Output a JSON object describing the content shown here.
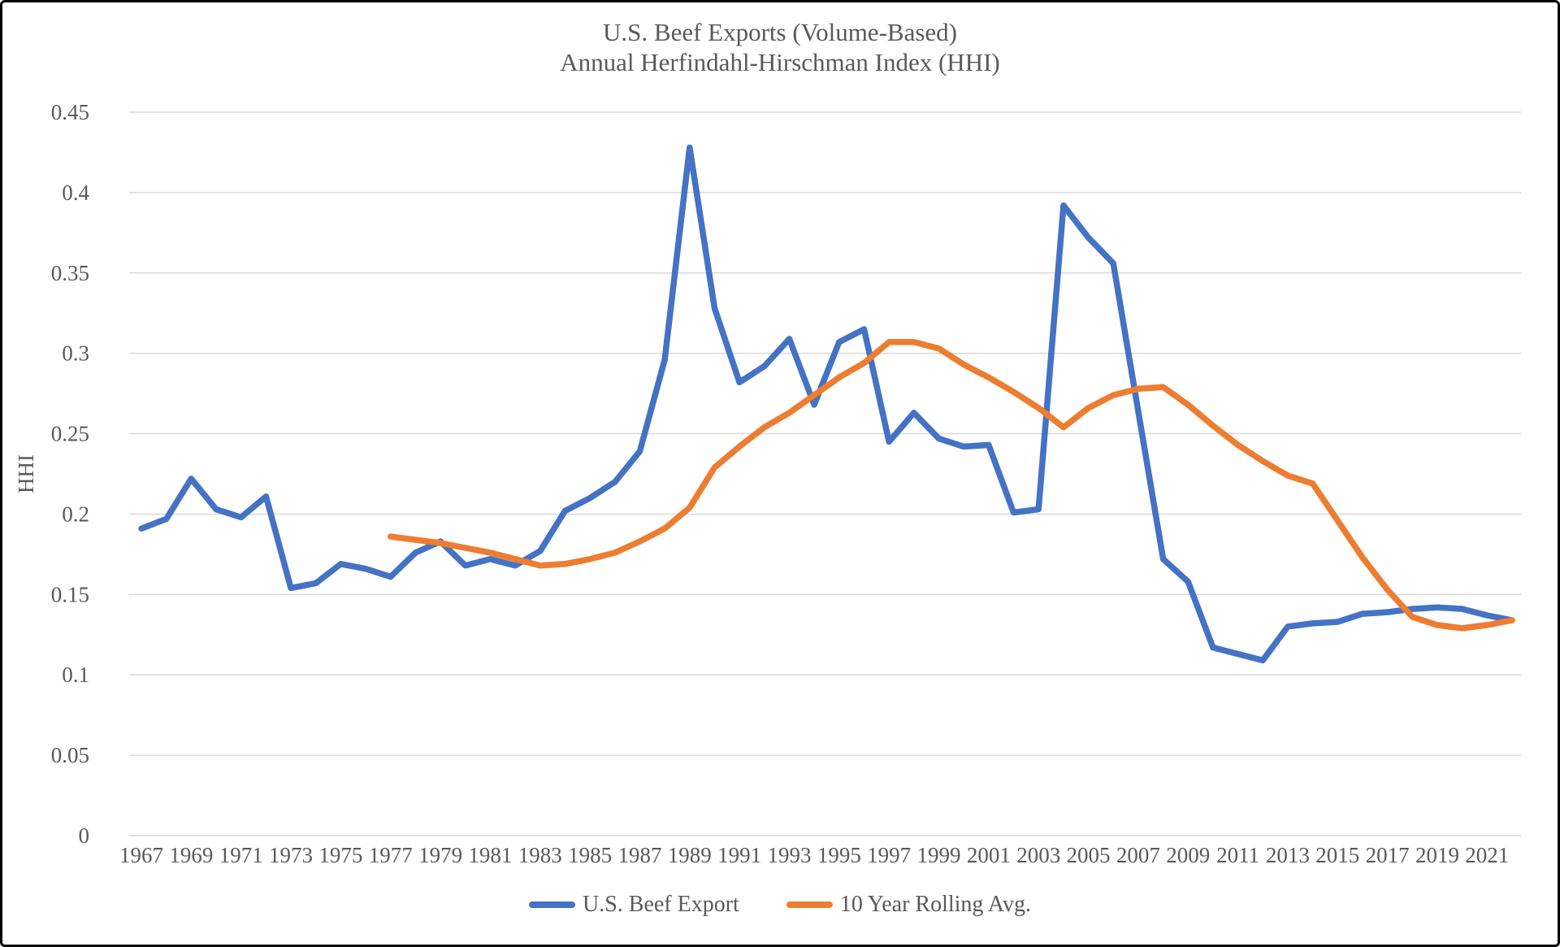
{
  "styles": {
    "text_color": "#595959",
    "gridline_color": "#D9D9D9",
    "background": "#FFFFFF",
    "border_color": "#000000"
  },
  "chart_data": {
    "type": "line",
    "title_line1": "U.S. Beef Exports (Volume-Based)",
    "title_line2": "Annual Herfindahl-Hirschman Index (HHI)",
    "ylabel": "HHI",
    "xlabel": "",
    "grid": true,
    "legend_position": "bottom",
    "ylim": [
      0,
      0.45
    ],
    "x_start": 1967,
    "x_end": 2022,
    "x_tick_labels": [
      1967,
      1969,
      1971,
      1973,
      1975,
      1977,
      1979,
      1981,
      1983,
      1985,
      1987,
      1989,
      1991,
      1993,
      1995,
      1997,
      1999,
      2001,
      2003,
      2005,
      2007,
      2009,
      2011,
      2013,
      2015,
      2017,
      2019,
      2021
    ],
    "y_ticks": [
      0,
      0.05,
      0.1,
      0.15,
      0.2,
      0.25,
      0.3,
      0.35,
      0.4,
      0.45
    ],
    "y_tick_labels": [
      "0",
      "0.05",
      "0.1",
      "0.15",
      "0.2",
      "0.25",
      "0.3",
      "0.35",
      "0.4",
      "0.45"
    ],
    "series": [
      {
        "name": "U.S. Beef Export",
        "color": "#4472C4",
        "start_year": 1967,
        "values": [
          0.191,
          0.197,
          0.222,
          0.203,
          0.198,
          0.211,
          0.154,
          0.157,
          0.169,
          0.166,
          0.161,
          0.176,
          0.183,
          0.168,
          0.172,
          0.168,
          0.177,
          0.202,
          0.21,
          0.22,
          0.239,
          0.296,
          0.428,
          0.328,
          0.282,
          0.292,
          0.309,
          0.268,
          0.307,
          0.315,
          0.245,
          0.263,
          0.247,
          0.242,
          0.243,
          0.201,
          0.203,
          0.392,
          0.372,
          0.356,
          0.264,
          0.172,
          0.158,
          0.117,
          0.113,
          0.109,
          0.13,
          0.132,
          0.133,
          0.138,
          0.139,
          0.141,
          0.142,
          0.141,
          0.137,
          0.134
        ]
      },
      {
        "name": "10 Year Rolling Avg.",
        "color": "#ED7D31",
        "start_year": 1977,
        "values": [
          0.186,
          0.184,
          0.182,
          0.179,
          0.176,
          0.172,
          0.168,
          0.169,
          0.172,
          0.176,
          0.183,
          0.191,
          0.204,
          0.229,
          0.242,
          0.254,
          0.263,
          0.274,
          0.285,
          0.294,
          0.307,
          0.307,
          0.303,
          0.293,
          0.285,
          0.276,
          0.266,
          0.254,
          0.266,
          0.274,
          0.278,
          0.279,
          0.268,
          0.255,
          0.243,
          0.233,
          0.224,
          0.219,
          0.196,
          0.173,
          0.153,
          0.136,
          0.131,
          0.129,
          0.131,
          0.134
        ]
      }
    ]
  }
}
